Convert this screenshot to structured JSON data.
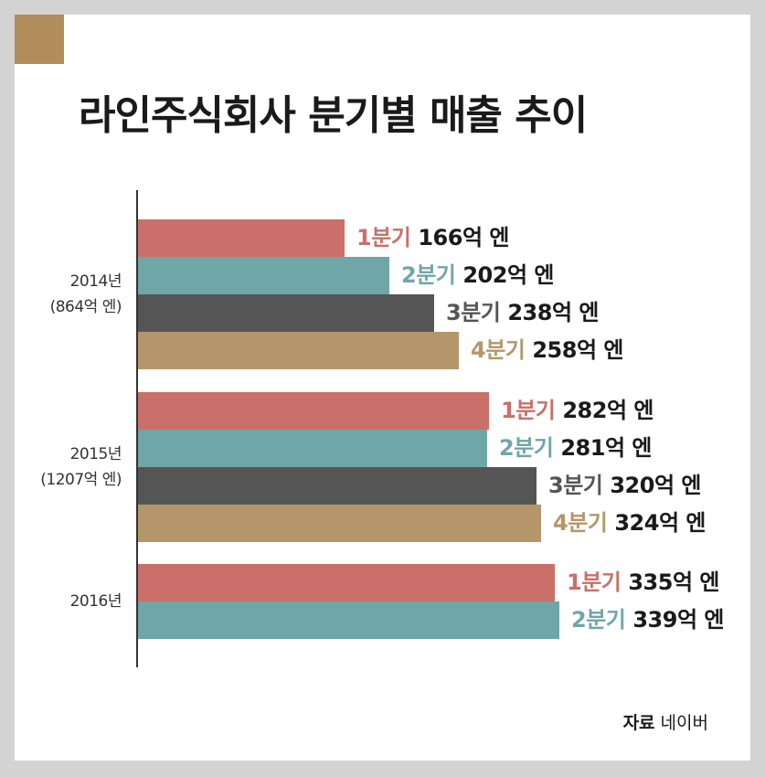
{
  "chart_data": {
    "type": "bar",
    "orientation": "horizontal",
    "title": "라인주식회사 분기별 매출 추이",
    "unit": "억 엔",
    "groups": [
      {
        "year": "2014년",
        "total": "(864억 엔)",
        "bars": [
          {
            "quarter": "1분기",
            "value": 166,
            "value_label": "166억 엔"
          },
          {
            "quarter": "2분기",
            "value": 202,
            "value_label": "202억 엔"
          },
          {
            "quarter": "3분기",
            "value": 238,
            "value_label": "238억 엔"
          },
          {
            "quarter": "4분기",
            "value": 258,
            "value_label": "258억 엔"
          }
        ]
      },
      {
        "year": "2015년",
        "total": "(1207억 엔)",
        "bars": [
          {
            "quarter": "1분기",
            "value": 282,
            "value_label": "282억 엔"
          },
          {
            "quarter": "2분기",
            "value": 281,
            "value_label": "281억 엔"
          },
          {
            "quarter": "3분기",
            "value": 320,
            "value_label": "320억 엔"
          },
          {
            "quarter": "4분기",
            "value": 324,
            "value_label": "324억 엔"
          }
        ]
      },
      {
        "year": "2016년",
        "total": "",
        "bars": [
          {
            "quarter": "1분기",
            "value": 335,
            "value_label": "335억 엔"
          },
          {
            "quarter": "2분기",
            "value": 339,
            "value_label": "339억 엔"
          }
        ]
      }
    ],
    "quarter_colors": {
      "1분기": "#c9706a",
      "2분기": "#6fa6a8",
      "3분기": "#555555",
      "4분기": "#b5966a"
    },
    "grid": false,
    "legend": "none"
  },
  "source": {
    "key": "자료",
    "value": "네이버"
  }
}
